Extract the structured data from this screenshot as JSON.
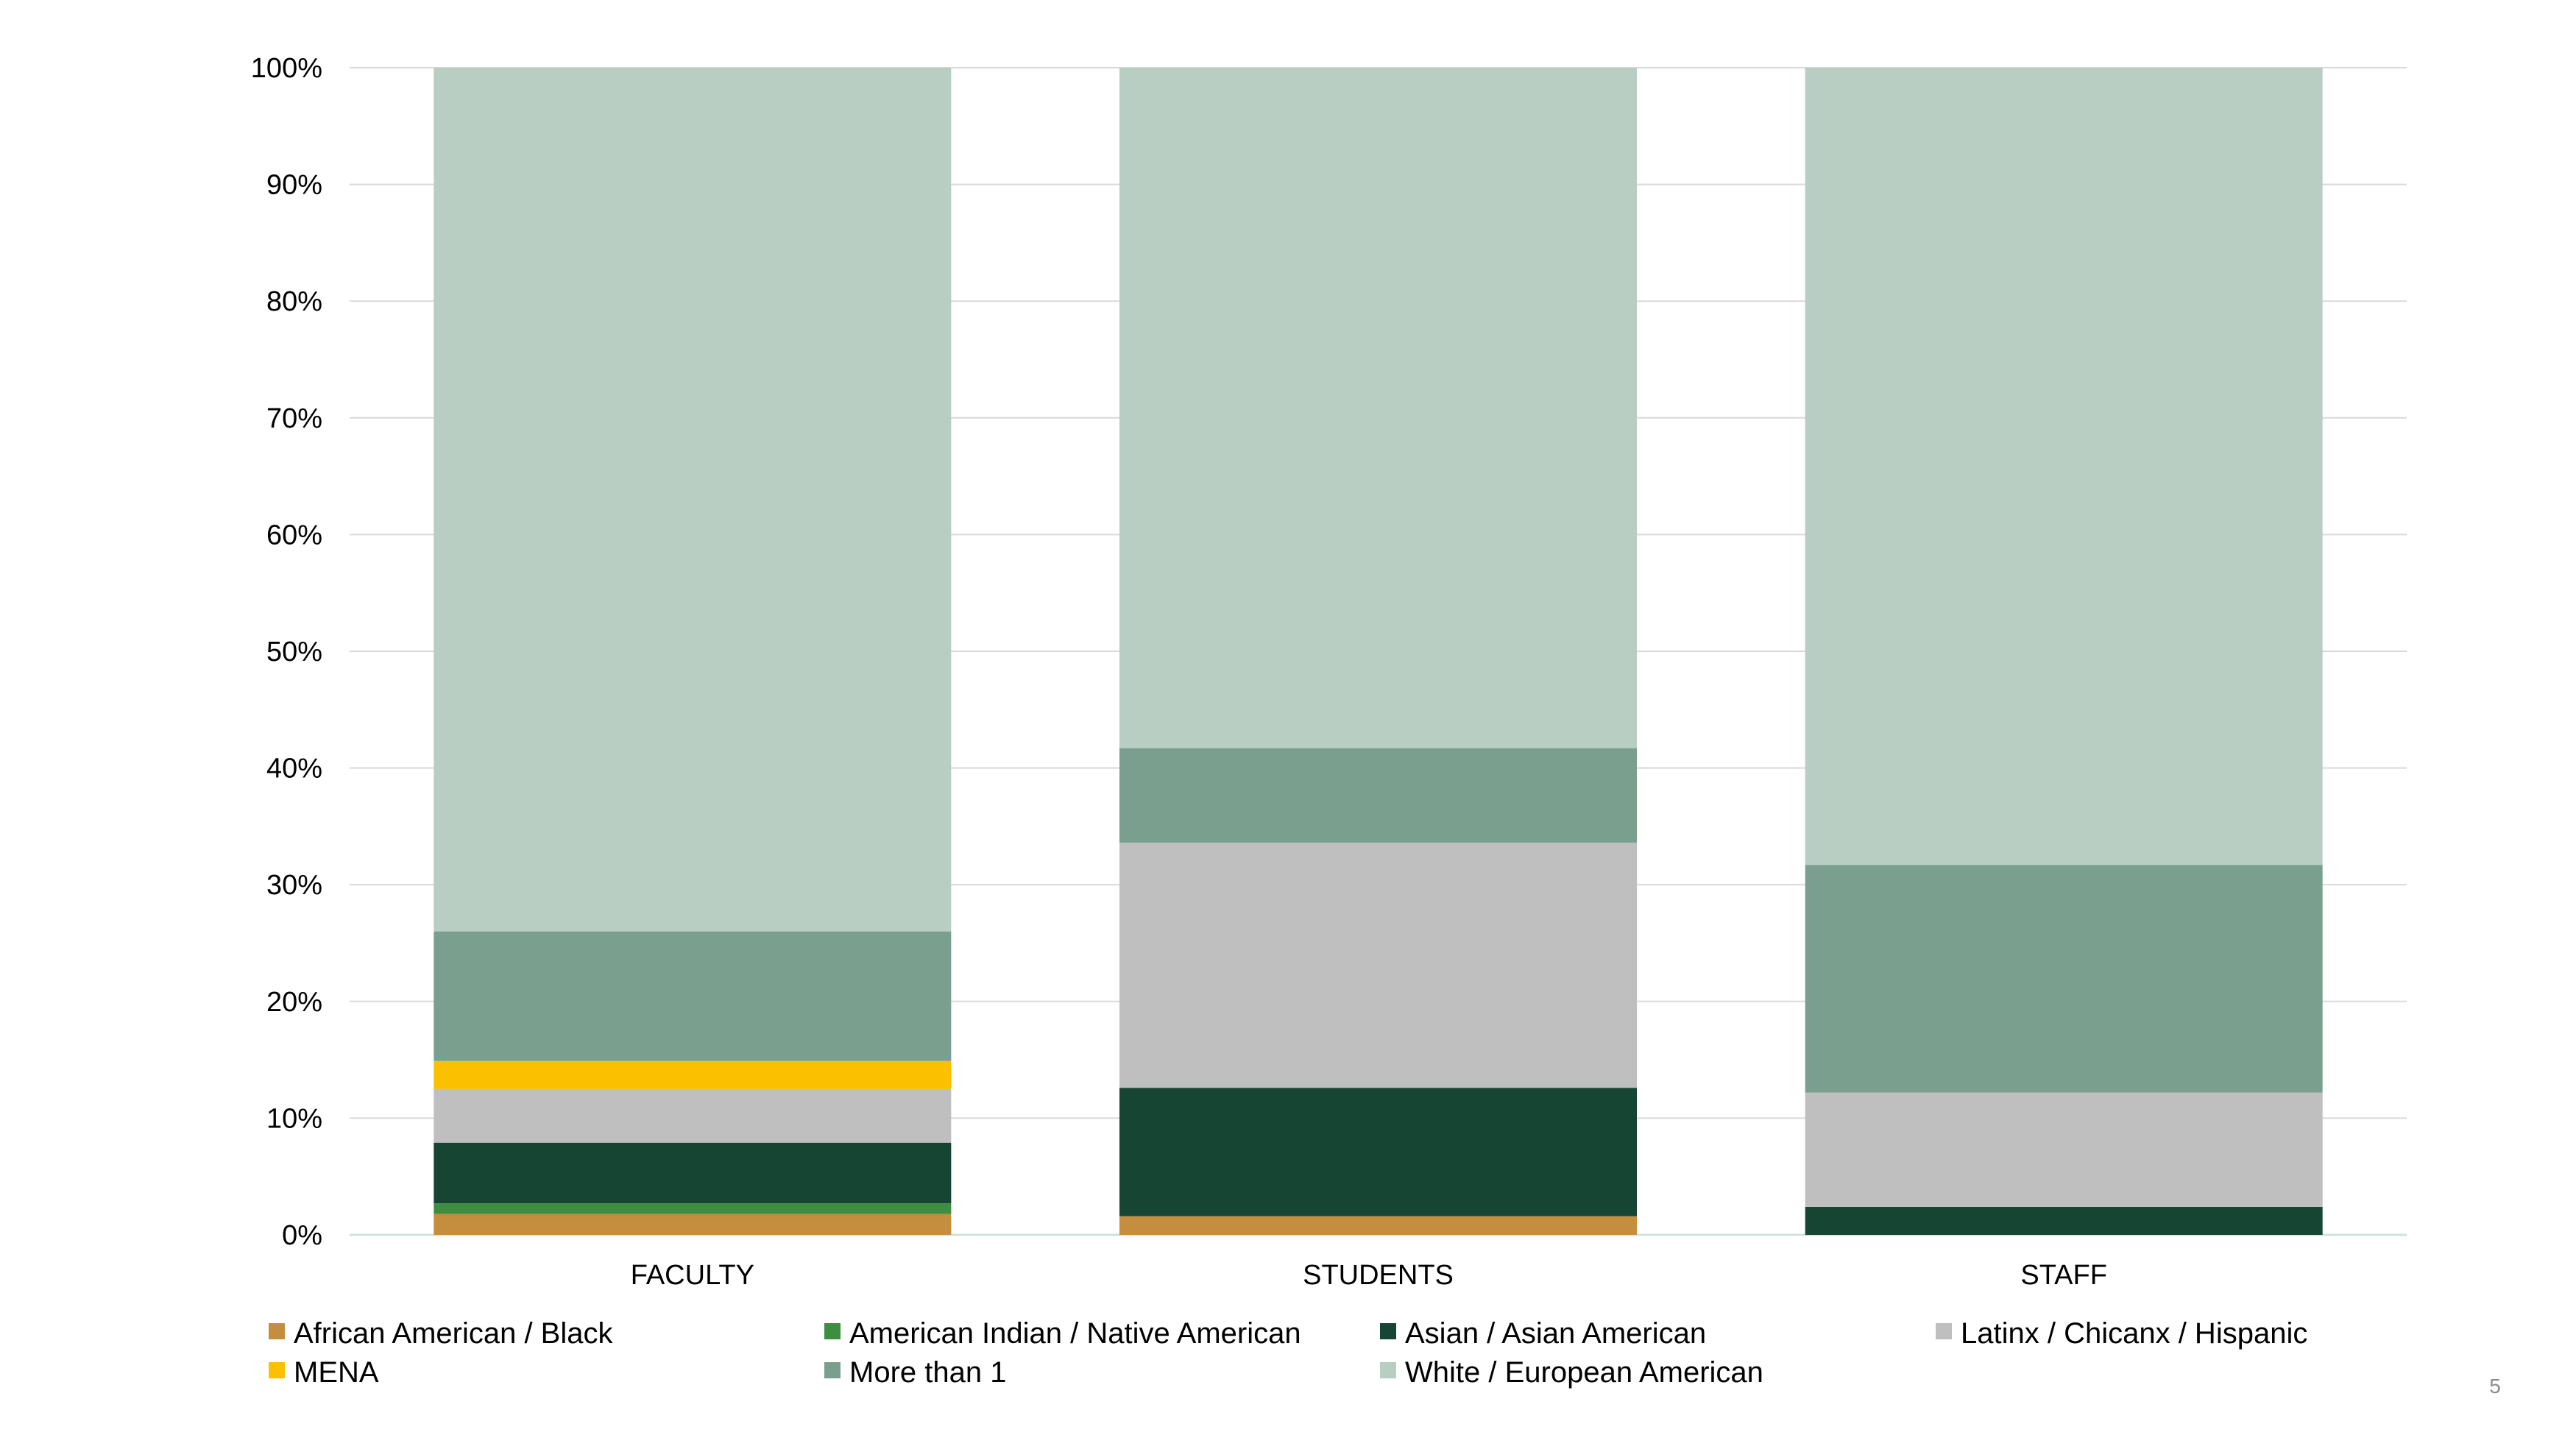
{
  "page_number": "5",
  "chart_data": {
    "type": "bar",
    "stacked": true,
    "percent_stacked": true,
    "categories": [
      "FACULTY",
      "STUDENTS",
      "STAFF"
    ],
    "ylim": [
      0,
      100
    ],
    "yticks": [
      "0%",
      "10%",
      "20%",
      "30%",
      "40%",
      "50%",
      "60%",
      "70%",
      "80%",
      "90%",
      "100%"
    ],
    "grid": true,
    "legend_position": "bottom",
    "series": [
      {
        "name": "African American / Black",
        "color": "#C48E3E",
        "values": [
          1.8,
          1.6,
          0.0
        ]
      },
      {
        "name": "American Indian / Native American",
        "color": "#3E8E41",
        "values": [
          0.9,
          0.0,
          0.0
        ]
      },
      {
        "name": "Asian / Asian American",
        "color": "#174533",
        "values": [
          5.2,
          11.0,
          2.4
        ]
      },
      {
        "name": "Latinx / Chicanx / Hispanic",
        "color": "#BFBFBF",
        "values": [
          4.6,
          21.0,
          9.8
        ]
      },
      {
        "name": "MENA",
        "color": "#FBC100",
        "values": [
          2.4,
          0.0,
          0.0
        ]
      },
      {
        "name": "More than 1",
        "color": "#7A9F8E",
        "values": [
          11.1,
          8.1,
          19.5
        ]
      },
      {
        "name": "White / European American",
        "color": "#B8CEC2",
        "values": [
          74.0,
          58.3,
          68.3
        ]
      }
    ]
  }
}
